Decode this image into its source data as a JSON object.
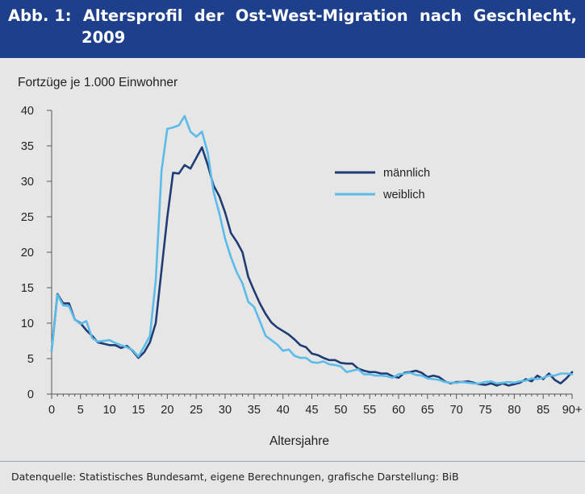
{
  "header": {
    "title_words": [
      "Abb. 1:",
      "Altersprofil",
      "der",
      "Ost-West-Migration",
      "nach",
      "Geschlecht,"
    ],
    "title_line2": "2009"
  },
  "footer": {
    "source": "Datenquelle: Statistisches Bundesamt, eigene Berechnungen, grafische Darstellung: BiB"
  },
  "colors": {
    "header_background": "#1e3f8c",
    "background": "#e6e6e6",
    "male": "#1f3c74",
    "female": "#5bbbe9"
  },
  "chart_data": {
    "type": "line",
    "title": "",
    "xlabel": "Altersjahre",
    "ylabel": "Fortzüge je 1.000 Einwohner",
    "ylim": [
      0,
      40
    ],
    "xlim": [
      0,
      90
    ],
    "yticks": [
      0,
      5,
      10,
      15,
      20,
      25,
      30,
      35,
      40
    ],
    "xticks": [
      0,
      5,
      10,
      15,
      20,
      25,
      30,
      35,
      40,
      45,
      50,
      55,
      60,
      65,
      70,
      75,
      80,
      85,
      90
    ],
    "xtick_labels": [
      "0",
      "5",
      "10",
      "15",
      "20",
      "25",
      "30",
      "35",
      "40",
      "45",
      "50",
      "55",
      "60",
      "65",
      "70",
      "75",
      "80",
      "85",
      "90+"
    ],
    "grid": false,
    "legend": "upper-center-right",
    "x": [
      0,
      1,
      2,
      3,
      4,
      5,
      6,
      7,
      8,
      9,
      10,
      11,
      12,
      13,
      14,
      15,
      16,
      17,
      18,
      19,
      20,
      21,
      22,
      23,
      24,
      25,
      26,
      27,
      28,
      29,
      30,
      31,
      32,
      33,
      34,
      35,
      36,
      37,
      38,
      39,
      40,
      41,
      42,
      43,
      44,
      45,
      46,
      47,
      48,
      49,
      50,
      51,
      52,
      53,
      54,
      55,
      56,
      57,
      58,
      59,
      60,
      61,
      62,
      63,
      64,
      65,
      66,
      67,
      68,
      69,
      70,
      71,
      72,
      73,
      74,
      75,
      76,
      77,
      78,
      79,
      80,
      81,
      82,
      83,
      84,
      85,
      86,
      87,
      88,
      89,
      90
    ],
    "series": [
      {
        "name": "männlich",
        "color": "#1f3c74",
        "values": [
          6.1,
          14.1,
          12.8,
          12.8,
          10.5,
          10.0,
          9.0,
          8.2,
          7.3,
          7.1,
          6.9,
          6.9,
          6.5,
          6.8,
          6.1,
          5.1,
          5.9,
          7.3,
          10.0,
          17.5,
          24.9,
          31.2,
          31.1,
          32.3,
          31.8,
          33.3,
          34.8,
          32.3,
          29.4,
          27.9,
          25.6,
          22.7,
          21.5,
          20.0,
          16.5,
          14.6,
          12.8,
          11.3,
          10.1,
          9.4,
          8.9,
          8.4,
          7.7,
          6.9,
          6.6,
          5.7,
          5.5,
          5.1,
          4.8,
          4.8,
          4.4,
          4.3,
          4.3,
          3.6,
          3.3,
          3.1,
          3.1,
          2.9,
          2.9,
          2.5,
          2.3,
          3.0,
          3.1,
          3.3,
          3.0,
          2.4,
          2.6,
          2.4,
          1.8,
          1.5,
          1.7,
          1.7,
          1.8,
          1.6,
          1.4,
          1.3,
          1.5,
          1.2,
          1.5,
          1.2,
          1.4,
          1.6,
          2.1,
          1.8,
          2.6,
          2.1,
          2.9,
          2.0,
          1.5,
          2.2,
          3.1
        ]
      },
      {
        "name": "weiblich",
        "color": "#5bbbe9",
        "values": [
          6.1,
          14.0,
          12.5,
          12.4,
          10.5,
          9.9,
          10.3,
          7.9,
          7.4,
          7.5,
          7.6,
          7.2,
          6.9,
          6.6,
          6.2,
          5.3,
          6.7,
          8.2,
          16.0,
          31.5,
          37.4,
          37.6,
          37.9,
          39.2,
          37.0,
          36.3,
          37.0,
          34.0,
          28.5,
          25.5,
          21.9,
          19.3,
          17.2,
          15.6,
          13.0,
          12.3,
          10.3,
          8.2,
          7.6,
          7.0,
          6.1,
          6.3,
          5.4,
          5.1,
          5.1,
          4.5,
          4.4,
          4.6,
          4.2,
          4.1,
          3.9,
          3.1,
          3.3,
          3.5,
          2.8,
          2.8,
          2.6,
          2.6,
          2.5,
          2.3,
          2.8,
          2.9,
          3.0,
          2.7,
          2.6,
          2.2,
          2.1,
          2.0,
          1.7,
          1.6,
          1.6,
          1.7,
          1.6,
          1.5,
          1.5,
          1.7,
          1.8,
          1.5,
          1.6,
          1.7,
          1.6,
          1.8,
          1.9,
          2.2,
          2.1,
          2.3,
          2.6,
          2.6,
          2.9,
          2.9,
          2.8
        ]
      }
    ]
  }
}
